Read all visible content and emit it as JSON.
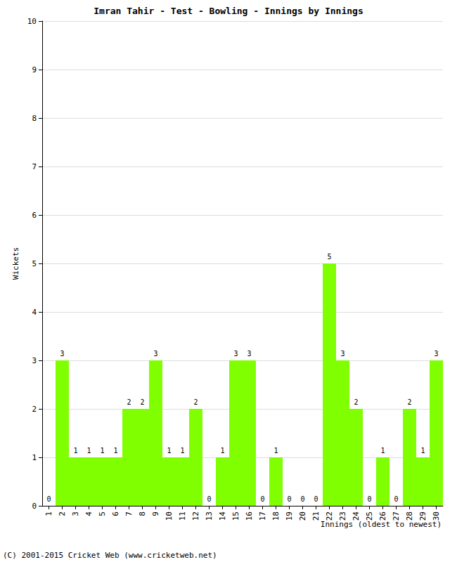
{
  "chart_data": {
    "type": "bar",
    "title": "Imran Tahir - Test - Bowling - Innings by Innings",
    "x_label": "Innings (oldest to newest)",
    "y_label": "Wickets",
    "annotations": [
      "(C) 2001-2015 Cricket Web (www.cricketweb.net)"
    ],
    "categories": [
      "1",
      "2",
      "3",
      "4",
      "5",
      "6",
      "7",
      "8",
      "9",
      "10",
      "11",
      "12",
      "13",
      "14",
      "15",
      "16",
      "17",
      "18",
      "19",
      "20",
      "21",
      "22",
      "23",
      "24",
      "25",
      "26",
      "27",
      "28",
      "29",
      "30"
    ],
    "values": [
      0,
      3,
      1,
      1,
      1,
      1,
      2,
      2,
      3,
      1,
      1,
      2,
      0,
      1,
      3,
      3,
      0,
      1,
      0,
      0,
      0,
      5,
      3,
      2,
      0,
      1,
      0,
      2,
      1,
      3
    ],
    "color": "#7fff00",
    "ylim": [
      0,
      10
    ],
    "yticks": [
      0,
      1,
      2,
      3,
      4,
      5,
      6,
      7,
      8,
      9,
      10
    ],
    "grid": true,
    "data_labels": true
  }
}
